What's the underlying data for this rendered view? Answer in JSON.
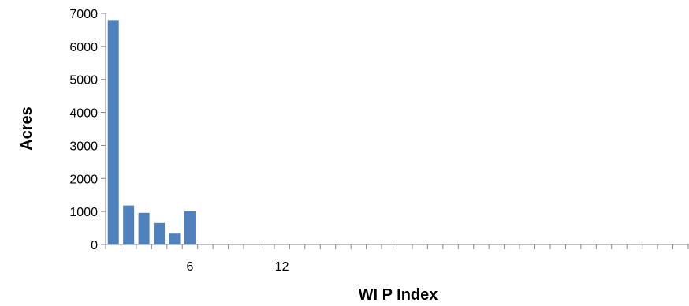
{
  "chart_data": {
    "type": "bar",
    "title": "",
    "xlabel": "WI  P Index",
    "ylabel": "Acres",
    "ylim": [
      0,
      7000
    ],
    "yticks": [
      0,
      1000,
      2000,
      3000,
      4000,
      5000,
      6000,
      7000
    ],
    "x_category_count": 38,
    "x_tick_labels": [
      {
        "index": 6,
        "label": "6"
      },
      {
        "index": 12,
        "label": "12"
      }
    ],
    "categories": [
      1,
      2,
      3,
      4,
      5,
      6
    ],
    "values": [
      6800,
      1180,
      960,
      650,
      330,
      1010
    ],
    "bar_color": "#4F81BD",
    "grid": false,
    "legend": "none"
  }
}
